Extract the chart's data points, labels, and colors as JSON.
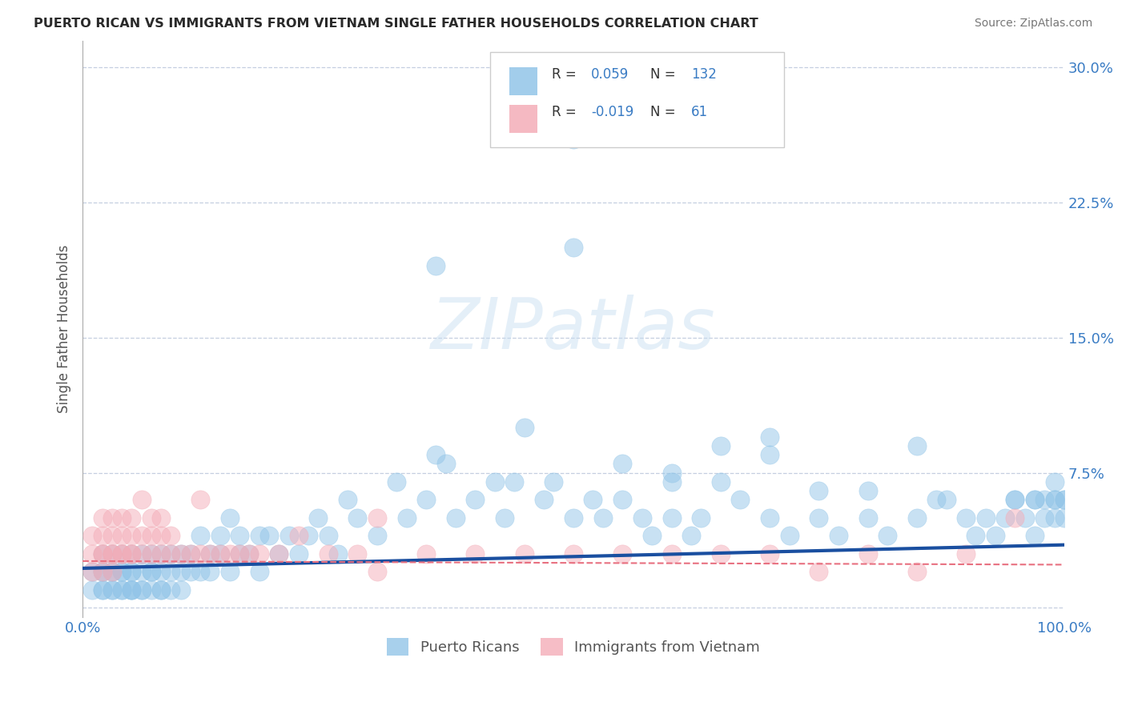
{
  "title": "PUERTO RICAN VS IMMIGRANTS FROM VIETNAM SINGLE FATHER HOUSEHOLDS CORRELATION CHART",
  "source": "Source: ZipAtlas.com",
  "ylabel": "Single Father Households",
  "xlim": [
    0,
    1
  ],
  "ylim": [
    -0.005,
    0.315
  ],
  "yticks": [
    0.0,
    0.075,
    0.15,
    0.225,
    0.3
  ],
  "ytick_labels": [
    "",
    "7.5%",
    "15.0%",
    "22.5%",
    "30.0%"
  ],
  "xtick_vals": [
    0.0,
    1.0
  ],
  "xtick_labels": [
    "0.0%",
    "100.0%"
  ],
  "r_blue": 0.059,
  "n_blue": 132,
  "r_pink": -0.019,
  "n_pink": 61,
  "blue_color": "#92c5e8",
  "pink_color": "#f4adb8",
  "trend_blue": "#1a4fa0",
  "trend_pink": "#e87080",
  "watermark": "ZIPatlas",
  "legend_label_blue": "Puerto Ricans",
  "legend_label_pink": "Immigrants from Vietnam",
  "blue_trend_y0": 0.022,
  "blue_trend_y1": 0.035,
  "pink_trend_y0": 0.026,
  "pink_trend_y1": 0.024,
  "blue_scatter_x": [
    0.01,
    0.01,
    0.02,
    0.02,
    0.02,
    0.02,
    0.02,
    0.03,
    0.03,
    0.03,
    0.03,
    0.03,
    0.04,
    0.04,
    0.04,
    0.04,
    0.04,
    0.05,
    0.05,
    0.05,
    0.05,
    0.05,
    0.05,
    0.06,
    0.06,
    0.06,
    0.06,
    0.07,
    0.07,
    0.07,
    0.07,
    0.08,
    0.08,
    0.08,
    0.08,
    0.09,
    0.09,
    0.09,
    0.1,
    0.1,
    0.1,
    0.11,
    0.11,
    0.12,
    0.12,
    0.13,
    0.13,
    0.14,
    0.14,
    0.15,
    0.15,
    0.16,
    0.16,
    0.17,
    0.18,
    0.18,
    0.19,
    0.2,
    0.21,
    0.22,
    0.23,
    0.24,
    0.25,
    0.26,
    0.27,
    0.28,
    0.3,
    0.32,
    0.33,
    0.35,
    0.37,
    0.38,
    0.4,
    0.42,
    0.43,
    0.44,
    0.45,
    0.47,
    0.48,
    0.5,
    0.52,
    0.53,
    0.55,
    0.57,
    0.58,
    0.6,
    0.62,
    0.63,
    0.65,
    0.67,
    0.7,
    0.72,
    0.75,
    0.77,
    0.8,
    0.82,
    0.85,
    0.87,
    0.9,
    0.91,
    0.92,
    0.93,
    0.94,
    0.95,
    0.96,
    0.97,
    0.97,
    0.98,
    0.98,
    0.99,
    0.99,
    0.99,
    1.0,
    1.0,
    0.36,
    0.5,
    0.6,
    0.36,
    0.55,
    0.65,
    0.7,
    0.75,
    0.8,
    0.85,
    0.88,
    0.95,
    0.97,
    0.99,
    1.0,
    0.5,
    0.6,
    0.7
  ],
  "blue_scatter_y": [
    0.01,
    0.02,
    0.01,
    0.02,
    0.03,
    0.01,
    0.02,
    0.01,
    0.02,
    0.03,
    0.01,
    0.02,
    0.01,
    0.02,
    0.03,
    0.01,
    0.02,
    0.01,
    0.02,
    0.01,
    0.02,
    0.03,
    0.01,
    0.01,
    0.02,
    0.03,
    0.01,
    0.02,
    0.01,
    0.03,
    0.02,
    0.01,
    0.02,
    0.03,
    0.01,
    0.02,
    0.01,
    0.03,
    0.02,
    0.01,
    0.03,
    0.02,
    0.03,
    0.02,
    0.04,
    0.03,
    0.02,
    0.03,
    0.04,
    0.02,
    0.05,
    0.03,
    0.04,
    0.03,
    0.04,
    0.02,
    0.04,
    0.03,
    0.04,
    0.03,
    0.04,
    0.05,
    0.04,
    0.03,
    0.06,
    0.05,
    0.04,
    0.07,
    0.05,
    0.06,
    0.08,
    0.05,
    0.06,
    0.07,
    0.05,
    0.07,
    0.1,
    0.06,
    0.07,
    0.05,
    0.06,
    0.05,
    0.06,
    0.05,
    0.04,
    0.05,
    0.04,
    0.05,
    0.07,
    0.06,
    0.05,
    0.04,
    0.05,
    0.04,
    0.05,
    0.04,
    0.05,
    0.06,
    0.05,
    0.04,
    0.05,
    0.04,
    0.05,
    0.06,
    0.05,
    0.04,
    0.06,
    0.05,
    0.06,
    0.05,
    0.06,
    0.07,
    0.05,
    0.06,
    0.19,
    0.2,
    0.07,
    0.085,
    0.08,
    0.09,
    0.095,
    0.065,
    0.065,
    0.09,
    0.06,
    0.06,
    0.06,
    0.06,
    0.06,
    0.26,
    0.075,
    0.085
  ],
  "pink_scatter_x": [
    0.01,
    0.01,
    0.01,
    0.02,
    0.02,
    0.02,
    0.02,
    0.02,
    0.03,
    0.03,
    0.03,
    0.03,
    0.03,
    0.04,
    0.04,
    0.04,
    0.04,
    0.05,
    0.05,
    0.05,
    0.05,
    0.06,
    0.06,
    0.06,
    0.07,
    0.07,
    0.07,
    0.08,
    0.08,
    0.08,
    0.09,
    0.09,
    0.1,
    0.11,
    0.12,
    0.13,
    0.14,
    0.15,
    0.16,
    0.17,
    0.18,
    0.2,
    0.22,
    0.25,
    0.28,
    0.3,
    0.3,
    0.35,
    0.4,
    0.45,
    0.5,
    0.55,
    0.6,
    0.65,
    0.7,
    0.75,
    0.8,
    0.85,
    0.9,
    0.95,
    0.12
  ],
  "pink_scatter_y": [
    0.02,
    0.03,
    0.04,
    0.02,
    0.03,
    0.04,
    0.05,
    0.03,
    0.02,
    0.03,
    0.04,
    0.05,
    0.03,
    0.03,
    0.04,
    0.05,
    0.03,
    0.03,
    0.04,
    0.05,
    0.03,
    0.03,
    0.04,
    0.06,
    0.03,
    0.04,
    0.05,
    0.03,
    0.04,
    0.05,
    0.03,
    0.04,
    0.03,
    0.03,
    0.03,
    0.03,
    0.03,
    0.03,
    0.03,
    0.03,
    0.03,
    0.03,
    0.04,
    0.03,
    0.03,
    0.02,
    0.05,
    0.03,
    0.03,
    0.03,
    0.03,
    0.03,
    0.03,
    0.03,
    0.03,
    0.02,
    0.03,
    0.02,
    0.03,
    0.05,
    0.06
  ]
}
